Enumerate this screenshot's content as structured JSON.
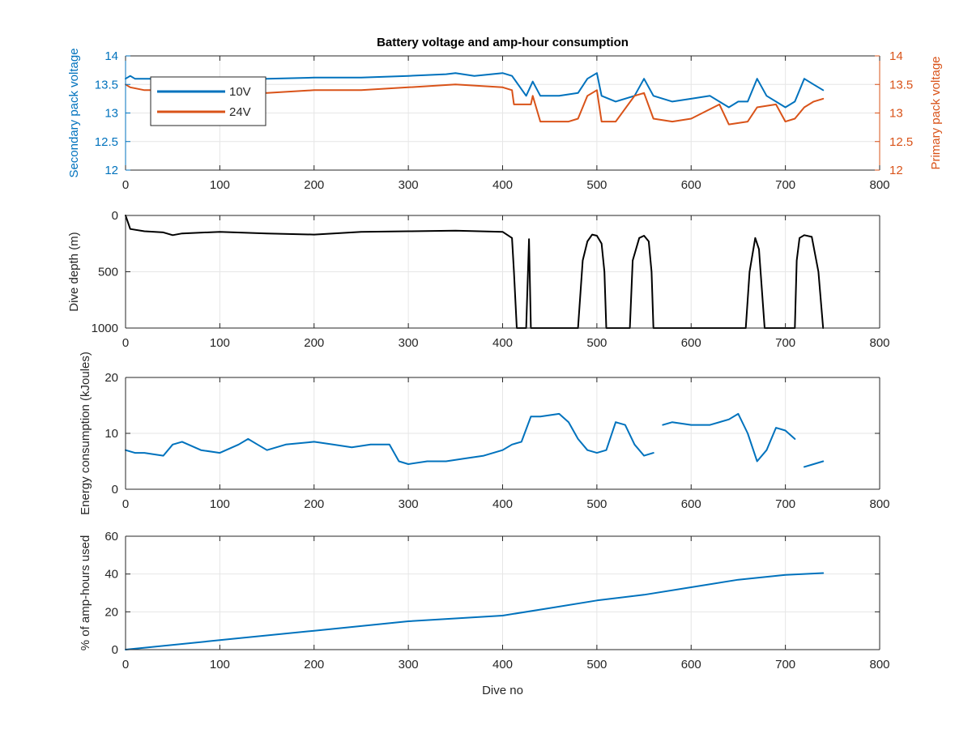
{
  "figure": {
    "title": "Battery voltage and amp-hour consumption"
  },
  "chart_data": [
    {
      "type": "line",
      "title": "Battery voltage and amp-hour consumption",
      "xlabel": "",
      "ylabel": "Secondary pack voltage",
      "y2label": "Primary pack voltage",
      "xlim": [
        0,
        800
      ],
      "ylim": [
        12,
        14
      ],
      "y2lim": [
        12,
        14
      ],
      "xticks": [
        0,
        100,
        200,
        300,
        400,
        500,
        600,
        700,
        800
      ],
      "yticks": [
        12,
        12.5,
        13,
        13.5,
        14
      ],
      "y2ticks": [
        12,
        12.5,
        13,
        13.5,
        14
      ],
      "grid": true,
      "legend": "top-left",
      "series": [
        {
          "name": "10V",
          "color": "#0072BD",
          "axis": "left",
          "x": [
            0,
            5,
            10,
            30,
            50,
            80,
            100,
            150,
            200,
            250,
            300,
            340,
            350,
            370,
            400,
            410,
            425,
            432,
            440,
            460,
            480,
            490,
            500,
            505,
            520,
            540,
            550,
            560,
            580,
            600,
            620,
            640,
            650,
            660,
            670,
            680,
            700,
            710,
            720,
            730,
            740
          ],
          "values": [
            13.6,
            13.65,
            13.6,
            13.6,
            13.62,
            13.62,
            13.6,
            13.6,
            13.62,
            13.62,
            13.65,
            13.68,
            13.7,
            13.65,
            13.7,
            13.65,
            13.3,
            13.55,
            13.3,
            13.3,
            13.35,
            13.6,
            13.7,
            13.3,
            13.2,
            13.3,
            13.6,
            13.3,
            13.2,
            13.25,
            13.3,
            13.1,
            13.2,
            13.2,
            13.6,
            13.3,
            13.1,
            13.2,
            13.6,
            13.5,
            13.4
          ]
        },
        {
          "name": "24V",
          "color": "#D95319",
          "axis": "right",
          "x": [
            0,
            5,
            20,
            50,
            100,
            150,
            200,
            250,
            300,
            350,
            400,
            410,
            412,
            430,
            432,
            440,
            470,
            480,
            490,
            500,
            505,
            520,
            540,
            550,
            560,
            580,
            600,
            630,
            640,
            660,
            670,
            690,
            700,
            710,
            720,
            730,
            740
          ],
          "values": [
            13.5,
            13.45,
            13.4,
            13.4,
            13.35,
            13.35,
            13.4,
            13.4,
            13.45,
            13.5,
            13.45,
            13.4,
            13.15,
            13.15,
            13.3,
            12.85,
            12.85,
            12.9,
            13.3,
            13.4,
            12.85,
            12.85,
            13.3,
            13.35,
            12.9,
            12.85,
            12.9,
            13.15,
            12.8,
            12.85,
            13.1,
            13.15,
            12.85,
            12.9,
            13.1,
            13.2,
            13.25
          ]
        }
      ]
    },
    {
      "type": "line",
      "title": "",
      "xlabel": "",
      "ylabel": "Dive depth (m)",
      "xlim": [
        0,
        800
      ],
      "ylim": [
        1000,
        0
      ],
      "y_reversed": true,
      "xticks": [
        0,
        100,
        200,
        300,
        400,
        500,
        600,
        700,
        800
      ],
      "yticks": [
        0,
        500,
        1000
      ],
      "grid": true,
      "series": [
        {
          "name": "",
          "color": "#000000",
          "x": [
            0,
            5,
            20,
            40,
            50,
            60,
            100,
            150,
            200,
            250,
            300,
            350,
            400,
            410,
            412,
            415,
            425,
            428,
            430,
            432,
            434,
            440,
            480,
            485,
            490,
            495,
            500,
            505,
            508,
            510,
            535,
            538,
            545,
            550,
            555,
            558,
            560,
            650,
            658,
            662,
            668,
            672,
            678,
            680,
            710,
            712,
            715,
            720,
            728,
            735,
            740
          ],
          "values": [
            0,
            120,
            140,
            150,
            175,
            160,
            145,
            160,
            170,
            145,
            140,
            135,
            145,
            200,
            500,
            1000,
            1000,
            210,
            1000,
            1000,
            1000,
            1000,
            1000,
            400,
            230,
            170,
            180,
            250,
            500,
            1000,
            1000,
            400,
            200,
            180,
            230,
            500,
            1000,
            1000,
            1000,
            500,
            200,
            300,
            1000,
            1000,
            1000,
            400,
            200,
            175,
            190,
            500,
            1000
          ]
        }
      ]
    },
    {
      "type": "line",
      "title": "",
      "xlabel": "",
      "ylabel": "Energy consumption (kJoules)",
      "xlim": [
        0,
        800
      ],
      "ylim": [
        0,
        20
      ],
      "xticks": [
        0,
        100,
        200,
        300,
        400,
        500,
        600,
        700,
        800
      ],
      "yticks": [
        0,
        10,
        20
      ],
      "grid": true,
      "series": [
        {
          "name": "",
          "color": "#0072BD",
          "x": [
            0,
            10,
            20,
            40,
            50,
            60,
            80,
            100,
            120,
            130,
            140,
            150,
            170,
            200,
            220,
            240,
            260,
            280,
            290,
            300,
            320,
            340,
            360,
            380,
            400,
            410,
            420,
            430,
            440,
            460,
            470,
            480,
            490,
            500,
            510,
            520,
            530,
            540,
            550,
            560,
            null,
            570,
            580,
            600,
            620,
            640,
            650,
            660,
            670,
            680,
            690,
            700,
            710,
            null,
            720,
            730,
            740
          ],
          "values": [
            7,
            6.5,
            6.5,
            6,
            8,
            8.5,
            7,
            6.5,
            8,
            9,
            8,
            7,
            8,
            8.5,
            8,
            7.5,
            8,
            8,
            5,
            4.5,
            5,
            5,
            5.5,
            6,
            7,
            8,
            8.5,
            13,
            13,
            13.5,
            12,
            9,
            7,
            6.5,
            7,
            12,
            11.5,
            8,
            6,
            6.5,
            null,
            11.5,
            12,
            11.5,
            11.5,
            12.5,
            13.5,
            10,
            5,
            7,
            11,
            10.5,
            9,
            null,
            4,
            4.5,
            5
          ]
        }
      ]
    },
    {
      "type": "line",
      "title": "",
      "xlabel": "Dive no",
      "ylabel": "% of amp-hours used",
      "xlim": [
        0,
        800
      ],
      "ylim": [
        0,
        60
      ],
      "xticks": [
        0,
        100,
        200,
        300,
        400,
        500,
        600,
        700,
        800
      ],
      "yticks": [
        0,
        20,
        40,
        60
      ],
      "grid": true,
      "series": [
        {
          "name": "",
          "color": "#0072BD",
          "x": [
            0,
            100,
            200,
            300,
            400,
            450,
            500,
            550,
            600,
            650,
            700,
            740
          ],
          "values": [
            0,
            5,
            10,
            15,
            18,
            22,
            26,
            29,
            33,
            37,
            39.5,
            40.5
          ]
        }
      ]
    }
  ]
}
